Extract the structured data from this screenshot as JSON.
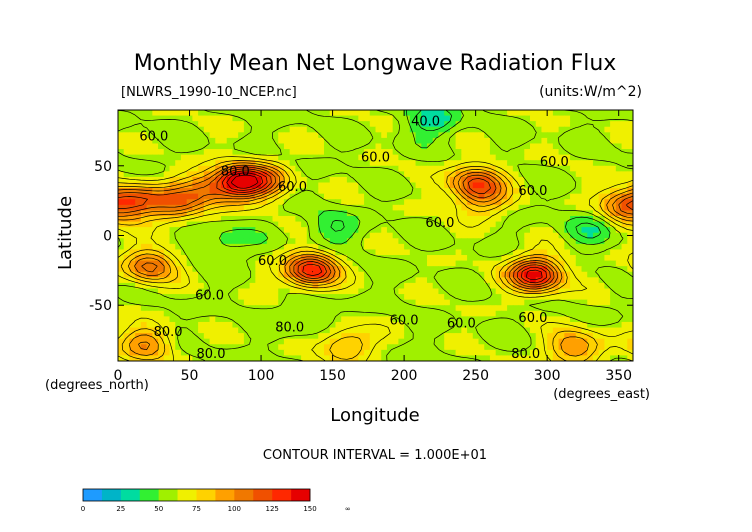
{
  "chart_data": {
    "type": "heatmap",
    "title": "Monthly Mean Net Longwave Radiation Flux",
    "subtitle_left": "[NLWRS_1990-10_NCEP.nc]",
    "subtitle_right": "(units:W/m^2)",
    "xlabel": "Longitude",
    "xunit_label": "(degrees_east)",
    "ylabel": "Latitude",
    "yunit_label": "(degrees_north)",
    "xlim": [
      0,
      360
    ],
    "ylim": [
      -90,
      90
    ],
    "x_ticks": [
      0,
      50,
      100,
      150,
      200,
      250,
      300,
      350
    ],
    "y_ticks": [
      -50,
      0,
      50
    ],
    "contour_interval_text": "CONTOUR INTERVAL = 1.000E+01",
    "contour_labels": [
      {
        "text": "60.0",
        "lon": 25,
        "lat": 68
      },
      {
        "text": "40.0",
        "lon": 215,
        "lat": 79
      },
      {
        "text": "60.0",
        "lon": 180,
        "lat": 53
      },
      {
        "text": "60.0",
        "lon": 305,
        "lat": 50
      },
      {
        "text": "60.0",
        "lon": 290,
        "lat": 29
      },
      {
        "text": "60.0",
        "lon": 122,
        "lat": 32
      },
      {
        "text": "80.0",
        "lon": 82,
        "lat": 43
      },
      {
        "text": "60.0",
        "lon": 225,
        "lat": 6
      },
      {
        "text": "60.0",
        "lon": 108,
        "lat": -21
      },
      {
        "text": "60.0",
        "lon": 64,
        "lat": -46
      },
      {
        "text": "60.0",
        "lon": 200,
        "lat": -64
      },
      {
        "text": "60.0",
        "lon": 240,
        "lat": -66
      },
      {
        "text": "60.0",
        "lon": 290,
        "lat": -62
      },
      {
        "text": "80.0",
        "lon": 120,
        "lat": -69
      },
      {
        "text": "80.0",
        "lon": 35,
        "lat": -72
      },
      {
        "text": "80.0",
        "lon": 65,
        "lat": -88
      },
      {
        "text": "80.0",
        "lon": 285,
        "lat": -88
      }
    ],
    "colorbar": {
      "tick_labels": [
        "0",
        "25",
        "50",
        "75",
        "100",
        "125",
        "150",
        "∞"
      ],
      "colors": [
        "#1e9bff",
        "#00b4c8",
        "#00dca0",
        "#32f032",
        "#a0f000",
        "#f0f000",
        "#ffd200",
        "#ffa000",
        "#f07800",
        "#f05000",
        "#ff2800",
        "#e60000"
      ],
      "bin_edges": [
        0,
        12.5,
        25,
        37.5,
        50,
        62.5,
        75,
        87.5,
        100,
        112.5,
        125,
        137.5,
        150
      ]
    },
    "background_value": 60,
    "features": [
      {
        "name": "north-africa-arabia",
        "lon": 15,
        "lat": 25,
        "peak": 110
      },
      {
        "name": "east-sahara",
        "lon": 40,
        "lat": 22,
        "peak": 100
      },
      {
        "name": "central-asia",
        "lon": 85,
        "lat": 38,
        "peak": 150
      },
      {
        "name": "tibet-west",
        "lon": 60,
        "lat": 33,
        "peak": 100
      },
      {
        "name": "mongolia",
        "lon": 105,
        "lat": 40,
        "peak": 95
      },
      {
        "name": "north-america",
        "lon": 250,
        "lat": 38,
        "peak": 120
      },
      {
        "name": "mexico",
        "lon": 255,
        "lat": 25,
        "peak": 90
      },
      {
        "name": "arabia-east",
        "lon": 355,
        "lat": 22,
        "peak": 110
      },
      {
        "name": "southern-africa",
        "lon": 22,
        "lat": -22,
        "peak": 115
      },
      {
        "name": "australia",
        "lon": 135,
        "lat": -25,
        "peak": 140
      },
      {
        "name": "south-america-andes",
        "lon": 292,
        "lat": -28,
        "peak": 150
      },
      {
        "name": "antarctic-coast-west",
        "lon": 20,
        "lat": -78,
        "peak": 100
      },
      {
        "name": "antarctic-coast-mid",
        "lon": 160,
        "lat": -78,
        "peak": 95
      },
      {
        "name": "antarctic-coast-east",
        "lon": 320,
        "lat": -80,
        "peak": 105
      },
      {
        "name": "southern-ocean-low",
        "lon": 130,
        "lat": -58,
        "peak": 45
      },
      {
        "name": "tropical-pacific-low",
        "lon": 150,
        "lat": 5,
        "peak": 40
      },
      {
        "name": "arctic-low",
        "lon": 220,
        "lat": 83,
        "peak": 30
      },
      {
        "name": "indian-ocean-low",
        "lon": 75,
        "lat": -5,
        "peak": 42
      },
      {
        "name": "atlantic-low",
        "lon": 330,
        "lat": 5,
        "peak": 42
      }
    ]
  }
}
